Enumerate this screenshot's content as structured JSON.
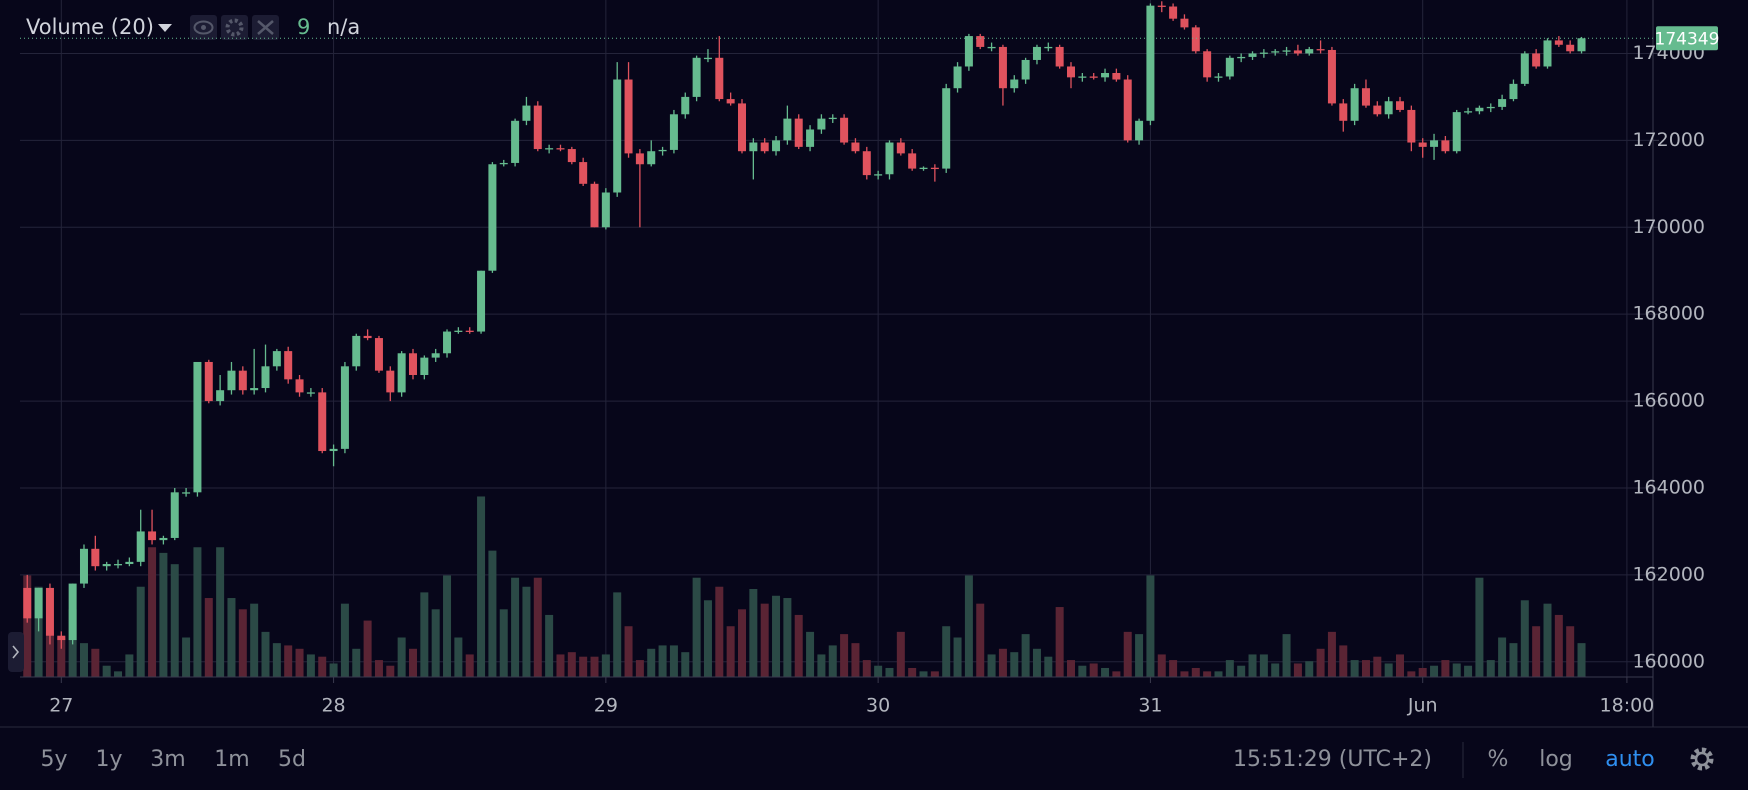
{
  "chart_data": {
    "type": "candlestick",
    "x": [
      -3,
      -2,
      -1,
      0,
      1,
      2,
      3,
      4,
      5,
      6,
      7,
      8,
      9,
      10,
      11,
      12,
      13,
      14,
      15,
      16,
      17,
      18,
      19,
      20,
      21,
      22,
      23,
      24,
      25,
      26,
      27,
      28,
      29,
      30,
      31,
      32,
      33,
      34,
      35,
      36,
      37,
      38,
      39,
      40,
      41,
      42,
      43,
      44,
      45,
      46,
      47,
      48,
      49,
      50,
      51,
      52,
      53,
      54,
      55,
      56,
      57,
      58,
      59,
      60,
      61,
      62,
      63,
      64,
      65,
      66,
      67,
      68,
      69,
      70,
      71,
      72,
      73,
      74,
      75,
      76,
      77,
      78,
      79,
      80,
      81,
      82,
      83,
      84,
      85,
      86,
      87,
      88,
      89,
      90,
      91,
      92,
      93,
      94,
      95,
      96,
      97,
      98,
      99,
      100,
      101,
      102,
      103,
      104,
      105,
      106,
      107,
      108,
      109,
      110,
      111,
      112,
      113,
      114,
      115,
      116,
      117,
      118,
      119,
      120,
      121,
      122,
      123,
      124,
      125,
      126,
      127,
      128,
      129,
      130,
      131,
      132,
      133,
      134
    ],
    "candles": [
      [
        161700,
        162000,
        160900,
        161000
      ],
      [
        161000,
        161700,
        160700,
        161700
      ],
      [
        161700,
        161800,
        160400,
        160600
      ],
      [
        160600,
        160700,
        160300,
        160500
      ],
      [
        160500,
        161800,
        160400,
        161800
      ],
      [
        161800,
        162700,
        161700,
        162600
      ],
      [
        162600,
        162900,
        162100,
        162200
      ],
      [
        162200,
        162300,
        162100,
        162250
      ],
      [
        162250,
        162350,
        162150,
        162250
      ],
      [
        162250,
        162400,
        162200,
        162300
      ],
      [
        162300,
        163500,
        162200,
        163000
      ],
      [
        163000,
        163500,
        162700,
        162800
      ],
      [
        162800,
        162900,
        162700,
        162850
      ],
      [
        162850,
        164000,
        162800,
        163900
      ],
      [
        163900,
        164000,
        163800,
        163900
      ],
      [
        163900,
        166900,
        163800,
        166900
      ],
      [
        166900,
        166950,
        165950,
        166000
      ],
      [
        166000,
        166600,
        165900,
        166250
      ],
      [
        166250,
        166900,
        166150,
        166700
      ],
      [
        166700,
        166800,
        166150,
        166250
      ],
      [
        166250,
        167200,
        166150,
        166300
      ],
      [
        166300,
        167300,
        166200,
        166800
      ],
      [
        166800,
        167200,
        166700,
        167150
      ],
      [
        167150,
        167250,
        166400,
        166500
      ],
      [
        166500,
        166600,
        166100,
        166200
      ],
      [
        166200,
        166300,
        166100,
        166200
      ],
      [
        166200,
        166300,
        164800,
        164850
      ],
      [
        164850,
        165000,
        164500,
        164900
      ],
      [
        164900,
        166900,
        164800,
        166800
      ],
      [
        166800,
        167550,
        166700,
        167500
      ],
      [
        167500,
        167650,
        167400,
        167450
      ],
      [
        167450,
        167500,
        166650,
        166700
      ],
      [
        166700,
        166800,
        166000,
        166200
      ],
      [
        166200,
        167150,
        166100,
        167100
      ],
      [
        167100,
        167200,
        166500,
        166600
      ],
      [
        166600,
        167050,
        166500,
        167000
      ],
      [
        167000,
        167200,
        166900,
        167100
      ],
      [
        167100,
        167650,
        167000,
        167600
      ],
      [
        167600,
        167700,
        167550,
        167620
      ],
      [
        167620,
        167700,
        167550,
        167600
      ],
      [
        167600,
        169000,
        167550,
        169000
      ],
      [
        169000,
        171500,
        168950,
        171450
      ],
      [
        171450,
        171550,
        171400,
        171480
      ],
      [
        171480,
        172500,
        171400,
        172450
      ],
      [
        172450,
        173000,
        172350,
        172800
      ],
      [
        172800,
        172900,
        171750,
        171800
      ],
      [
        171800,
        171900,
        171700,
        171820
      ],
      [
        171820,
        171900,
        171750,
        171800
      ],
      [
        171800,
        171850,
        171450,
        171500
      ],
      [
        171500,
        171600,
        170950,
        171000
      ],
      [
        171000,
        171050,
        170000,
        170000
      ],
      [
        170000,
        170900,
        169950,
        170800
      ],
      [
        170800,
        173800,
        170700,
        173400
      ],
      [
        173400,
        173800,
        171600,
        171700
      ],
      [
        171700,
        171800,
        170000,
        171450
      ],
      [
        171450,
        172000,
        171400,
        171750
      ],
      [
        171750,
        171850,
        171650,
        171780
      ],
      [
        171780,
        172700,
        171700,
        172600
      ],
      [
        172600,
        173100,
        172500,
        173000
      ],
      [
        173000,
        173950,
        172900,
        173900
      ],
      [
        173900,
        174100,
        173800,
        173900
      ],
      [
        173900,
        174400,
        172900,
        172950
      ],
      [
        172950,
        173100,
        172800,
        172850
      ],
      [
        172850,
        172950,
        171700,
        171750
      ],
      [
        171750,
        172050,
        171100,
        171950
      ],
      [
        171950,
        172050,
        171700,
        171750
      ],
      [
        171750,
        172100,
        171650,
        172000
      ],
      [
        172000,
        172800,
        171900,
        172500
      ],
      [
        172500,
        172600,
        171800,
        171850
      ],
      [
        171850,
        172350,
        171750,
        172250
      ],
      [
        172250,
        172600,
        172150,
        172500
      ],
      [
        172500,
        172600,
        172400,
        172520
      ],
      [
        172520,
        172600,
        171900,
        171950
      ],
      [
        171950,
        172050,
        171700,
        171750
      ],
      [
        171750,
        171850,
        171100,
        171200
      ],
      [
        171200,
        171300,
        171100,
        171220
      ],
      [
        171220,
        172000,
        171100,
        171950
      ],
      [
        171950,
        172050,
        171650,
        171700
      ],
      [
        171700,
        171800,
        171300,
        171350
      ],
      [
        171350,
        171400,
        171300,
        171370
      ],
      [
        171370,
        171450,
        171050,
        171350
      ],
      [
        171350,
        173300,
        171250,
        173200
      ],
      [
        173200,
        173800,
        173100,
        173700
      ],
      [
        173700,
        174450,
        173600,
        174400
      ],
      [
        174400,
        174450,
        174100,
        174150
      ],
      [
        174150,
        174250,
        174050,
        174150
      ],
      [
        174150,
        174200,
        172800,
        173200
      ],
      [
        173200,
        173500,
        173100,
        173400
      ],
      [
        173400,
        173900,
        173300,
        173850
      ],
      [
        173850,
        174200,
        173750,
        174150
      ],
      [
        174150,
        174250,
        174050,
        174150
      ],
      [
        174150,
        174200,
        173650,
        173700
      ],
      [
        173700,
        173800,
        173200,
        173450
      ],
      [
        173450,
        173550,
        173350,
        173470
      ],
      [
        173470,
        173550,
        173400,
        173450
      ],
      [
        173450,
        173650,
        173350,
        173550
      ],
      [
        173550,
        173650,
        173350,
        173400
      ],
      [
        173400,
        173500,
        171950,
        172000
      ],
      [
        172000,
        172500,
        171900,
        172450
      ],
      [
        172450,
        175150,
        172350,
        175100
      ],
      [
        175100,
        175200,
        174950,
        175080
      ],
      [
        175080,
        175150,
        174750,
        174800
      ],
      [
        174800,
        174900,
        174550,
        174600
      ],
      [
        174600,
        174650,
        174000,
        174050
      ],
      [
        174050,
        174100,
        173350,
        173450
      ],
      [
        173450,
        173550,
        173350,
        173470
      ],
      [
        173470,
        173950,
        173400,
        173900
      ],
      [
        173900,
        174000,
        173800,
        173920
      ],
      [
        173920,
        174050,
        173850,
        174000
      ],
      [
        174000,
        174100,
        173900,
        174020
      ],
      [
        174020,
        174100,
        173950,
        174050
      ],
      [
        174050,
        174150,
        173950,
        174070
      ],
      [
        174070,
        174200,
        173950,
        174000
      ],
      [
        174000,
        174150,
        173950,
        174100
      ],
      [
        174100,
        174300,
        174000,
        174080
      ],
      [
        174080,
        174150,
        172800,
        172850
      ],
      [
        172850,
        172950,
        172200,
        172450
      ],
      [
        172450,
        173300,
        172350,
        173200
      ],
      [
        173200,
        173400,
        172750,
        172800
      ],
      [
        172800,
        172900,
        172550,
        172600
      ],
      [
        172600,
        173000,
        172500,
        172900
      ],
      [
        172900,
        173000,
        172650,
        172700
      ],
      [
        172700,
        172800,
        171750,
        171950
      ],
      [
        171950,
        172050,
        171600,
        171850
      ],
      [
        171850,
        172150,
        171550,
        172000
      ],
      [
        172000,
        172100,
        171700,
        171750
      ],
      [
        171750,
        172700,
        171700,
        172650
      ],
      [
        172650,
        172750,
        172600,
        172670
      ],
      [
        172670,
        172800,
        172600,
        172750
      ],
      [
        172750,
        172850,
        172650,
        172770
      ],
      [
        172770,
        173050,
        172700,
        172950
      ],
      [
        172950,
        173400,
        172900,
        173300
      ],
      [
        173300,
        174050,
        173250,
        174000
      ],
      [
        174000,
        174100,
        173650,
        173700
      ],
      [
        173700,
        174350,
        173650,
        174300
      ],
      [
        174300,
        174400,
        174150,
        174200
      ],
      [
        174200,
        174300,
        174000,
        174050
      ],
      [
        174050,
        174380,
        174000,
        174349
      ]
    ],
    "volume": [
      90,
      80,
      40,
      35,
      60,
      30,
      25,
      10,
      5,
      20,
      80,
      115,
      110,
      100,
      35,
      115,
      70,
      115,
      70,
      60,
      65,
      40,
      30,
      28,
      25,
      20,
      18,
      12,
      65,
      25,
      50,
      15,
      10,
      35,
      25,
      75,
      60,
      90,
      35,
      20,
      160,
      112,
      60,
      88,
      80,
      88,
      55,
      20,
      22,
      18,
      18,
      20,
      75,
      45,
      15,
      25,
      28,
      28,
      22,
      88,
      68,
      80,
      45,
      60,
      78,
      65,
      72,
      70,
      55,
      40,
      20,
      28,
      38,
      30,
      15,
      10,
      8,
      40,
      8,
      5,
      5,
      45,
      35,
      90,
      65,
      20,
      25,
      22,
      38,
      25,
      18,
      62,
      15,
      10,
      12,
      8,
      5,
      40,
      38,
      90,
      20,
      15,
      5,
      8,
      5,
      5,
      15,
      10,
      20,
      20,
      12,
      38,
      12,
      14,
      25,
      40,
      28,
      15,
      15,
      18,
      12,
      20,
      5,
      8,
      10,
      15,
      12,
      10,
      88,
      15,
      35,
      30,
      68,
      45,
      65,
      55,
      45,
      30
    ],
    "up_color": "#66bb8f",
    "down_color": "#e0535e",
    "volume_up_color": "#2b4a46",
    "volume_down_color": "#5a2434",
    "xlim": [
      -3.64,
      140.3
    ],
    "ylim": [
      159650,
      175230
    ],
    "y2lim": [
      0,
      600
    ],
    "xticks": [
      {
        "value": 0,
        "label": "27"
      },
      {
        "value": 24,
        "label": "28"
      },
      {
        "value": 48,
        "label": "29"
      },
      {
        "value": 72,
        "label": "30"
      },
      {
        "value": 96,
        "label": "31"
      },
      {
        "value": 120,
        "label": "Jun"
      },
      {
        "value": 138,
        "label": "18:00"
      }
    ],
    "yticks": [
      160000,
      162000,
      164000,
      166000,
      168000,
      170000,
      172000,
      174000
    ],
    "grid": true,
    "legend": {
      "name": "Volume (20)",
      "value": "9",
      "ma": "n/a"
    }
  },
  "toolbar": {
    "ranges": [
      "5y",
      "1y",
      "3m",
      "1m",
      "5d"
    ],
    "time": "15:51:29 (UTC+2)",
    "options": [
      "%",
      "log",
      "auto"
    ]
  }
}
